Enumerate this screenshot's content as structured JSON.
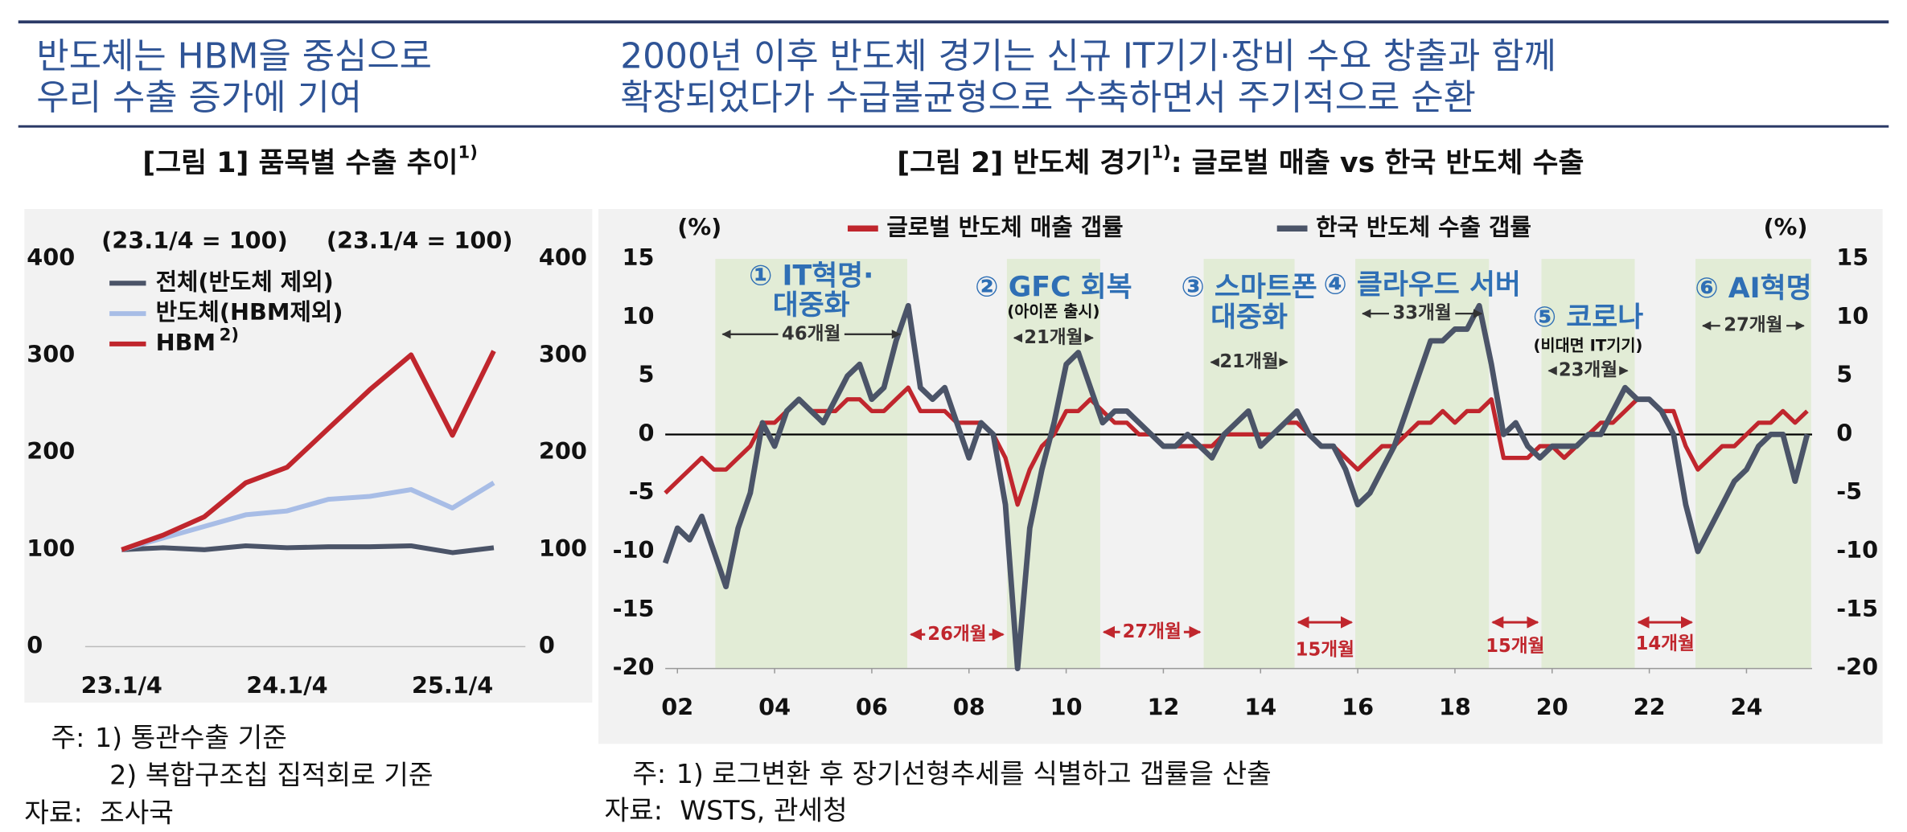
{
  "header": {
    "left": [
      "반도체는 HBM을 중심으로",
      "우리 수출 증가에 기여"
    ],
    "right": [
      "2000년 이후 반도체 경기는 신규 IT기기·장비 수요 창출과 함께",
      "확장되었다가 수급불균형으로 수축하면서 주기적으로 순환"
    ]
  },
  "chart_data": [
    {
      "type": "line",
      "title": "[그림 1] 품목별 수출 추이",
      "title_sup": "1)",
      "base_labels": [
        "(23.1/4 = 100)",
        "(23.1/4 = 100)"
      ],
      "categories": [
        "23.1/4",
        null,
        null,
        null,
        "24.1/4",
        null,
        null,
        null,
        "25.1/4",
        null
      ],
      "series": [
        {
          "name": "전체(반도체 제외)",
          "color": "#4b5468",
          "values": [
            100,
            102,
            100,
            104,
            102,
            103,
            103,
            104,
            97,
            102
          ]
        },
        {
          "name": "반도체(HBM제외)",
          "color": "#a8bde6",
          "values": [
            100,
            112,
            124,
            136,
            140,
            152,
            155,
            162,
            143,
            169
          ]
        },
        {
          "name": "HBM",
          "name_sup": "2)",
          "color": "#c0262d",
          "values": [
            100,
            115,
            134,
            169,
            185,
            225,
            265,
            301,
            218,
            305
          ]
        }
      ],
      "ylim": [
        0,
        400
      ],
      "yticks": [
        0,
        100,
        200,
        300,
        400
      ],
      "y2lim": [
        0,
        400
      ],
      "y2ticks": [
        0,
        100,
        200,
        300,
        400
      ],
      "notes": {
        "label": "주:",
        "items": [
          "1) 통관수출 기준",
          "2) 복합구조칩 집적회로 기준"
        ]
      },
      "source": {
        "label": "자료:",
        "text": "조사국"
      }
    },
    {
      "type": "line",
      "title": "[그림 2] 반도체 경기",
      "title_sup": "1)",
      "title_rest": ": 글로벌 매출 vs 한국 반도체 수출",
      "unit": "(%)",
      "x": [
        2001.75,
        2002,
        2002.25,
        2002.5,
        2002.75,
        2003,
        2003.25,
        2003.5,
        2003.75,
        2004,
        2004.25,
        2004.5,
        2004.75,
        2005,
        2005.25,
        2005.5,
        2005.75,
        2006,
        2006.25,
        2006.5,
        2006.75,
        2007,
        2007.25,
        2007.5,
        2007.75,
        2008,
        2008.25,
        2008.5,
        2008.75,
        2009,
        2009.25,
        2009.5,
        2009.75,
        2010,
        2010.25,
        2010.5,
        2010.75,
        2011,
        2011.25,
        2011.5,
        2011.75,
        2012,
        2012.25,
        2012.5,
        2012.75,
        2013,
        2013.25,
        2013.5,
        2013.75,
        2014,
        2014.25,
        2014.5,
        2014.75,
        2015,
        2015.25,
        2015.5,
        2015.75,
        2016,
        2016.25,
        2016.5,
        2016.75,
        2017,
        2017.25,
        2017.5,
        2017.75,
        2018,
        2018.25,
        2018.5,
        2018.75,
        2019,
        2019.25,
        2019.5,
        2019.75,
        2020,
        2020.25,
        2020.5,
        2020.75,
        2021,
        2021.25,
        2021.5,
        2021.75,
        2022,
        2022.25,
        2022.5,
        2022.75,
        2023,
        2023.25,
        2023.5,
        2023.75,
        2024,
        2024.25,
        2024.5,
        2024.75,
        2025,
        2025.25
      ],
      "series": [
        {
          "name": "글로벌 반도체 매출 갭률",
          "color": "#c0262d",
          "values": [
            -5,
            -4,
            -3,
            -2,
            -3,
            -3,
            -2,
            -1,
            1,
            1,
            2,
            3,
            2,
            2,
            2,
            3,
            3,
            2,
            2,
            3,
            4,
            2,
            2,
            2,
            1,
            1,
            1,
            0,
            -2,
            -6,
            -3,
            -1,
            0,
            2,
            2,
            3,
            2,
            1,
            1,
            0,
            0,
            -1,
            -1,
            -1,
            -1,
            -1,
            0,
            0,
            0,
            0,
            0,
            1,
            1,
            0,
            -1,
            -1,
            -2,
            -3,
            -2,
            -1,
            -1,
            0,
            1,
            1,
            2,
            1,
            2,
            2,
            3,
            -2,
            -2,
            -2,
            -1,
            -1,
            -2,
            -1,
            0,
            1,
            1,
            2,
            3,
            3,
            2,
            2,
            -1,
            -3,
            -2,
            -1,
            -1,
            0,
            1,
            1,
            2,
            1,
            2
          ]
        },
        {
          "name": "한국 반도체 수출 갭률",
          "color": "#4b5468",
          "values": [
            -11,
            -8,
            -9,
            -7,
            -10,
            -13,
            -8,
            -5,
            1,
            -1,
            2,
            3,
            2,
            1,
            3,
            5,
            6,
            3,
            4,
            8,
            11,
            4,
            3,
            4,
            1,
            -2,
            1,
            0,
            -6,
            -20,
            -8,
            -3,
            1,
            6,
            7,
            4,
            1,
            2,
            2,
            1,
            0,
            -1,
            -1,
            0,
            -1,
            -2,
            0,
            1,
            2,
            -1,
            0,
            1,
            2,
            0,
            -1,
            -1,
            -3,
            -6,
            -5,
            -3,
            -1,
            2,
            5,
            8,
            8,
            9,
            9,
            11,
            6,
            0,
            1,
            -1,
            -2,
            -1,
            -1,
            -1,
            0,
            0,
            2,
            4,
            3,
            3,
            2,
            0,
            -6,
            -10,
            -8,
            -6,
            -4,
            -3,
            -1,
            0,
            0,
            -4,
            0
          ]
        }
      ],
      "xlim": [
        2001.75,
        2025.35
      ],
      "xticks": [
        {
          "value": 2002,
          "label": "02"
        },
        {
          "value": 2004,
          "label": "04"
        },
        {
          "value": 2006,
          "label": "06"
        },
        {
          "value": 2008,
          "label": "08"
        },
        {
          "value": 2010,
          "label": "10"
        },
        {
          "value": 2012,
          "label": "12"
        },
        {
          "value": 2014,
          "label": "14"
        },
        {
          "value": 2016,
          "label": "16"
        },
        {
          "value": 2018,
          "label": "18"
        },
        {
          "value": 2020,
          "label": "20"
        },
        {
          "value": 2022,
          "label": "22"
        },
        {
          "value": 2024,
          "label": "24"
        }
      ],
      "ylim": [
        -20,
        15
      ],
      "yticks": [
        -20,
        -15,
        -10,
        -5,
        0,
        5,
        10,
        15
      ],
      "y2lim": [
        -20,
        15
      ],
      "y2ticks": [
        -20,
        -15,
        -10,
        -5,
        0,
        5,
        10,
        15
      ],
      "periods": [
        {
          "label": [
            "① IT혁명·",
            "대중화"
          ],
          "start": 2002.78,
          "end": 2006.73,
          "duration": "46개월"
        },
        {
          "label": [
            "② GFC 회복"
          ],
          "note": "(아이폰 출시)",
          "start": 2008.78,
          "end": 2010.7,
          "duration": "21개월"
        },
        {
          "label": [
            "③ 스마트폰",
            "대중화"
          ],
          "start": 2012.83,
          "end": 2014.7,
          "duration": "21개월"
        },
        {
          "label": [
            "④ 클라우드 서버"
          ],
          "start": 2015.95,
          "end": 2018.7,
          "duration": "33개월"
        },
        {
          "label": [
            "⑤ 코로나"
          ],
          "note": "(비대면 IT기기)",
          "start": 2019.78,
          "end": 2021.7,
          "duration": "23개월"
        },
        {
          "label": [
            "⑥ AI혁명"
          ],
          "start": 2022.95,
          "end": 2025.33,
          "duration": "27개월"
        }
      ],
      "contractions": [
        "26개월",
        "27개월",
        "15개월",
        "15개월",
        "14개월"
      ],
      "notes": {
        "label": "주:",
        "items": [
          "1) 로그변환 후 장기선형추세를 식별하고 갭률을 산출"
        ]
      },
      "source": {
        "label": "자료:",
        "text": "WSTS, 관세청"
      }
    }
  ]
}
